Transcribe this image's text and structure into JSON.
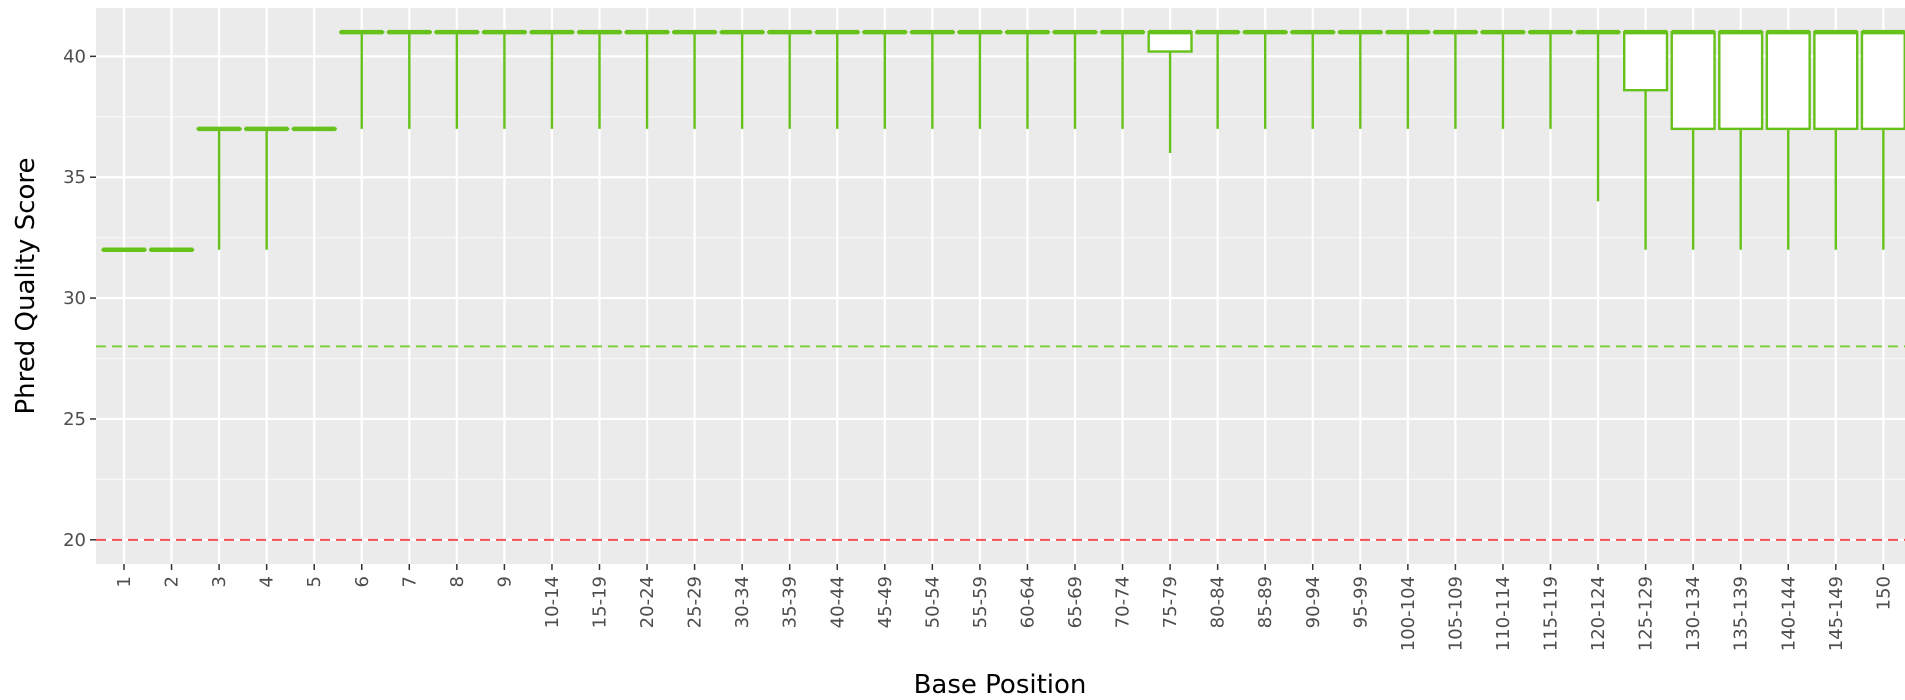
{
  "chart_data": {
    "type": "boxplot",
    "xlabel": "Base Position",
    "ylabel": "Phred Quality Score",
    "ylim": [
      19,
      42
    ],
    "y_ticks": [
      20,
      25,
      30,
      35,
      40
    ],
    "grid": true,
    "reference_lines": [
      {
        "y": 28,
        "color": "#7fd13b",
        "style": "dashed"
      },
      {
        "y": 20,
        "color": "#f05050",
        "style": "dashed"
      }
    ],
    "box_color": "#66c21a",
    "categories": [
      "1",
      "2",
      "3",
      "4",
      "5",
      "6",
      "7",
      "8",
      "9",
      "10-14",
      "15-19",
      "20-24",
      "25-29",
      "30-34",
      "35-39",
      "40-44",
      "45-49",
      "50-54",
      "55-59",
      "60-64",
      "65-69",
      "70-74",
      "75-79",
      "80-84",
      "85-89",
      "90-94",
      "95-99",
      "100-104",
      "105-109",
      "110-114",
      "115-119",
      "120-124",
      "125-129",
      "130-134",
      "135-139",
      "140-144",
      "145-149",
      "150"
    ],
    "boxes": [
      {
        "low": 32,
        "q1": 32,
        "median": 32,
        "q3": 32,
        "high": 32
      },
      {
        "low": 32,
        "q1": 32,
        "median": 32,
        "q3": 32,
        "high": 32
      },
      {
        "low": 32,
        "q1": 37,
        "median": 37,
        "q3": 37,
        "high": 37
      },
      {
        "low": 32,
        "q1": 37,
        "median": 37,
        "q3": 37,
        "high": 37
      },
      {
        "low": 37,
        "q1": 37,
        "median": 37,
        "q3": 37,
        "high": 37
      },
      {
        "low": 37,
        "q1": 41,
        "median": 41,
        "q3": 41,
        "high": 41
      },
      {
        "low": 37,
        "q1": 41,
        "median": 41,
        "q3": 41,
        "high": 41
      },
      {
        "low": 37,
        "q1": 41,
        "median": 41,
        "q3": 41,
        "high": 41
      },
      {
        "low": 37,
        "q1": 41,
        "median": 41,
        "q3": 41,
        "high": 41
      },
      {
        "low": 37,
        "q1": 41,
        "median": 41,
        "q3": 41,
        "high": 41
      },
      {
        "low": 37,
        "q1": 41,
        "median": 41,
        "q3": 41,
        "high": 41
      },
      {
        "low": 37,
        "q1": 41,
        "median": 41,
        "q3": 41,
        "high": 41
      },
      {
        "low": 37,
        "q1": 41,
        "median": 41,
        "q3": 41,
        "high": 41
      },
      {
        "low": 37,
        "q1": 41,
        "median": 41,
        "q3": 41,
        "high": 41
      },
      {
        "low": 37,
        "q1": 41,
        "median": 41,
        "q3": 41,
        "high": 41
      },
      {
        "low": 37,
        "q1": 41,
        "median": 41,
        "q3": 41,
        "high": 41
      },
      {
        "low": 37,
        "q1": 41,
        "median": 41,
        "q3": 41,
        "high": 41
      },
      {
        "low": 37,
        "q1": 41,
        "median": 41,
        "q3": 41,
        "high": 41
      },
      {
        "low": 37,
        "q1": 41,
        "median": 41,
        "q3": 41,
        "high": 41
      },
      {
        "low": 37,
        "q1": 41,
        "median": 41,
        "q3": 41,
        "high": 41
      },
      {
        "low": 37,
        "q1": 41,
        "median": 41,
        "q3": 41,
        "high": 41
      },
      {
        "low": 37,
        "q1": 41,
        "median": 41,
        "q3": 41,
        "high": 41
      },
      {
        "low": 36,
        "q1": 40.2,
        "median": 41,
        "q3": 41,
        "high": 41
      },
      {
        "low": 37,
        "q1": 41,
        "median": 41,
        "q3": 41,
        "high": 41
      },
      {
        "low": 37,
        "q1": 41,
        "median": 41,
        "q3": 41,
        "high": 41
      },
      {
        "low": 37,
        "q1": 41,
        "median": 41,
        "q3": 41,
        "high": 41
      },
      {
        "low": 37,
        "q1": 41,
        "median": 41,
        "q3": 41,
        "high": 41
      },
      {
        "low": 37,
        "q1": 41,
        "median": 41,
        "q3": 41,
        "high": 41
      },
      {
        "low": 37,
        "q1": 41,
        "median": 41,
        "q3": 41,
        "high": 41
      },
      {
        "low": 37,
        "q1": 41,
        "median": 41,
        "q3": 41,
        "high": 41
      },
      {
        "low": 37,
        "q1": 41,
        "median": 41,
        "q3": 41,
        "high": 41
      },
      {
        "low": 34,
        "q1": 41,
        "median": 41,
        "q3": 41,
        "high": 41
      },
      {
        "low": 32,
        "q1": 38.6,
        "median": 41,
        "q3": 41,
        "high": 41
      },
      {
        "low": 32,
        "q1": 37,
        "median": 41,
        "q3": 41,
        "high": 41
      },
      {
        "low": 32,
        "q1": 37,
        "median": 41,
        "q3": 41,
        "high": 41
      },
      {
        "low": 32,
        "q1": 37,
        "median": 41,
        "q3": 41,
        "high": 41
      },
      {
        "low": 32,
        "q1": 37,
        "median": 41,
        "q3": 41,
        "high": 41
      },
      {
        "low": 32,
        "q1": 37,
        "median": 41,
        "q3": 41,
        "high": 41
      }
    ]
  }
}
